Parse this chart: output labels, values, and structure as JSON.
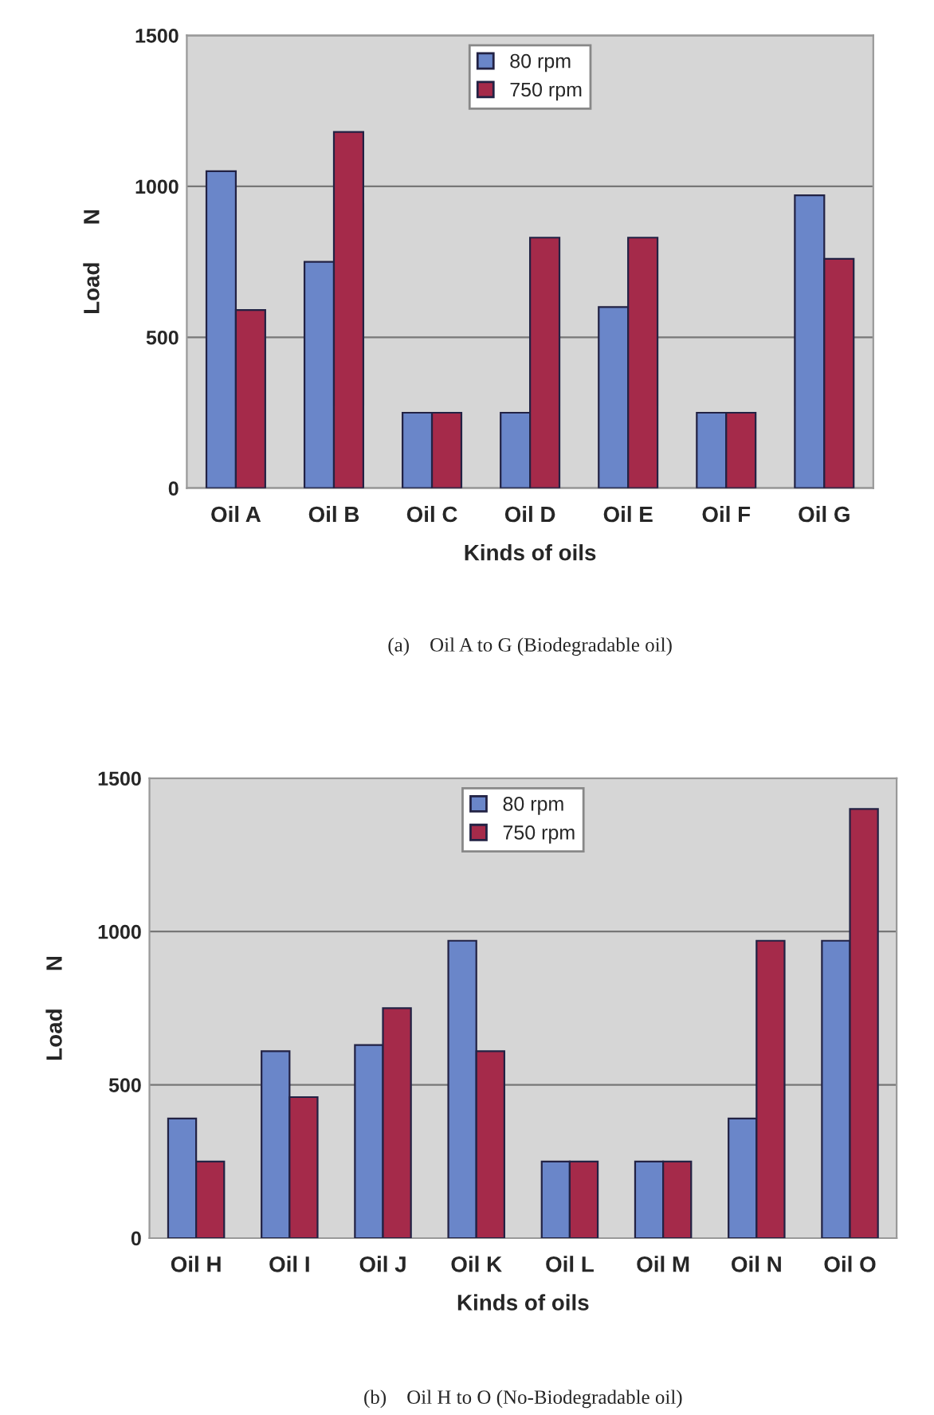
{
  "chart_data": [
    {
      "type": "bar",
      "xlabel": "Kinds of oils",
      "ylabel": "Load      N",
      "annotations": [
        "(a)    Oil A to G (Biodegradable oil)"
      ],
      "categories": [
        "Oil A",
        "Oil B",
        "Oil C",
        "Oil D",
        "Oil E",
        "Oil F",
        "Oil G"
      ],
      "series": [
        {
          "name": "80 rpm",
          "color": "#6a86c9",
          "values": [
            1050,
            750,
            250,
            250,
            600,
            250,
            970
          ]
        },
        {
          "name": "750 rpm",
          "color": "#a52a4a",
          "values": [
            590,
            1180,
            250,
            830,
            830,
            250,
            760
          ]
        }
      ],
      "ylim": [
        0,
        1500
      ],
      "yticks": [
        0,
        500,
        1000,
        1500
      ],
      "grid": "y",
      "legend": "top"
    },
    {
      "type": "bar",
      "xlabel": "Kinds of oils",
      "ylabel": "Load      N",
      "annotations": [
        "(b)    Oil H to O (No-Biodegradable oil)"
      ],
      "categories": [
        "Oil H",
        "Oil I",
        "Oil J",
        "Oil K",
        "Oil L",
        "Oil M",
        "Oil N",
        "Oil O"
      ],
      "series": [
        {
          "name": "80 rpm",
          "color": "#6a86c9",
          "values": [
            390,
            610,
            630,
            970,
            250,
            250,
            390,
            970
          ]
        },
        {
          "name": "750 rpm",
          "color": "#a52a4a",
          "values": [
            250,
            460,
            750,
            610,
            250,
            250,
            970,
            1400
          ]
        }
      ],
      "ylim": [
        0,
        1500
      ],
      "yticks": [
        0,
        500,
        1000,
        1500
      ],
      "grid": "y",
      "legend": "top"
    }
  ]
}
